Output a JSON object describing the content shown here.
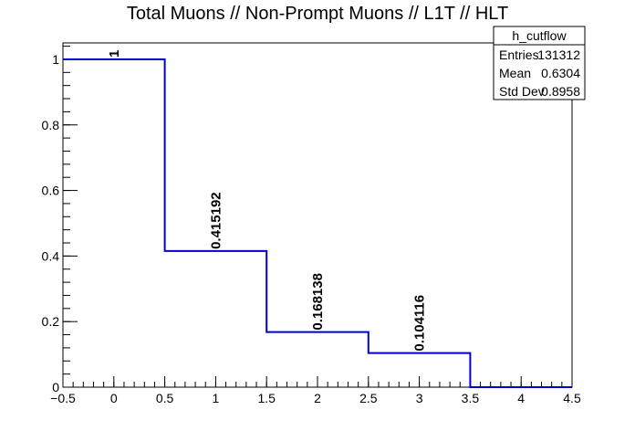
{
  "chart_data": {
    "type": "histogram",
    "title": "Total Muons // Non-Prompt Muons // L1T // HLT",
    "xlabel": "",
    "ylabel": "",
    "xlim": [
      -0.5,
      4.5
    ],
    "ylim": [
      0,
      1.05
    ],
    "bins": [
      {
        "low": -0.5,
        "high": 0.5,
        "value": 1,
        "label": "1"
      },
      {
        "low": 0.5,
        "high": 1.5,
        "value": 0.415192,
        "label": "0.415192"
      },
      {
        "low": 1.5,
        "high": 2.5,
        "value": 0.168138,
        "label": "0.168138"
      },
      {
        "low": 2.5,
        "high": 3.5,
        "value": 0.104116,
        "label": "0.104116"
      },
      {
        "low": 3.5,
        "high": 4.5,
        "value": 0,
        "label": ""
      }
    ],
    "x_ticks": [
      "−0.5",
      "0",
      "0.5",
      "1",
      "1.5",
      "2",
      "2.5",
      "3",
      "3.5",
      "4",
      "4.5"
    ],
    "x_tick_values": [
      -0.5,
      0,
      0.5,
      1,
      1.5,
      2,
      2.5,
      3,
      3.5,
      4,
      4.5
    ],
    "y_ticks": [
      "0",
      "0.2",
      "0.4",
      "0.6",
      "0.8",
      "1"
    ],
    "y_tick_values": [
      0,
      0.2,
      0.4,
      0.6,
      0.8,
      1
    ],
    "line_color": "#0000cc",
    "stats_box": {
      "name": "h_cutflow",
      "rows": [
        {
          "key": "Entries",
          "value": "131312"
        },
        {
          "key": "Mean",
          "value": "0.6304"
        },
        {
          "key": "Std Dev",
          "value": "0.8958"
        }
      ]
    }
  }
}
